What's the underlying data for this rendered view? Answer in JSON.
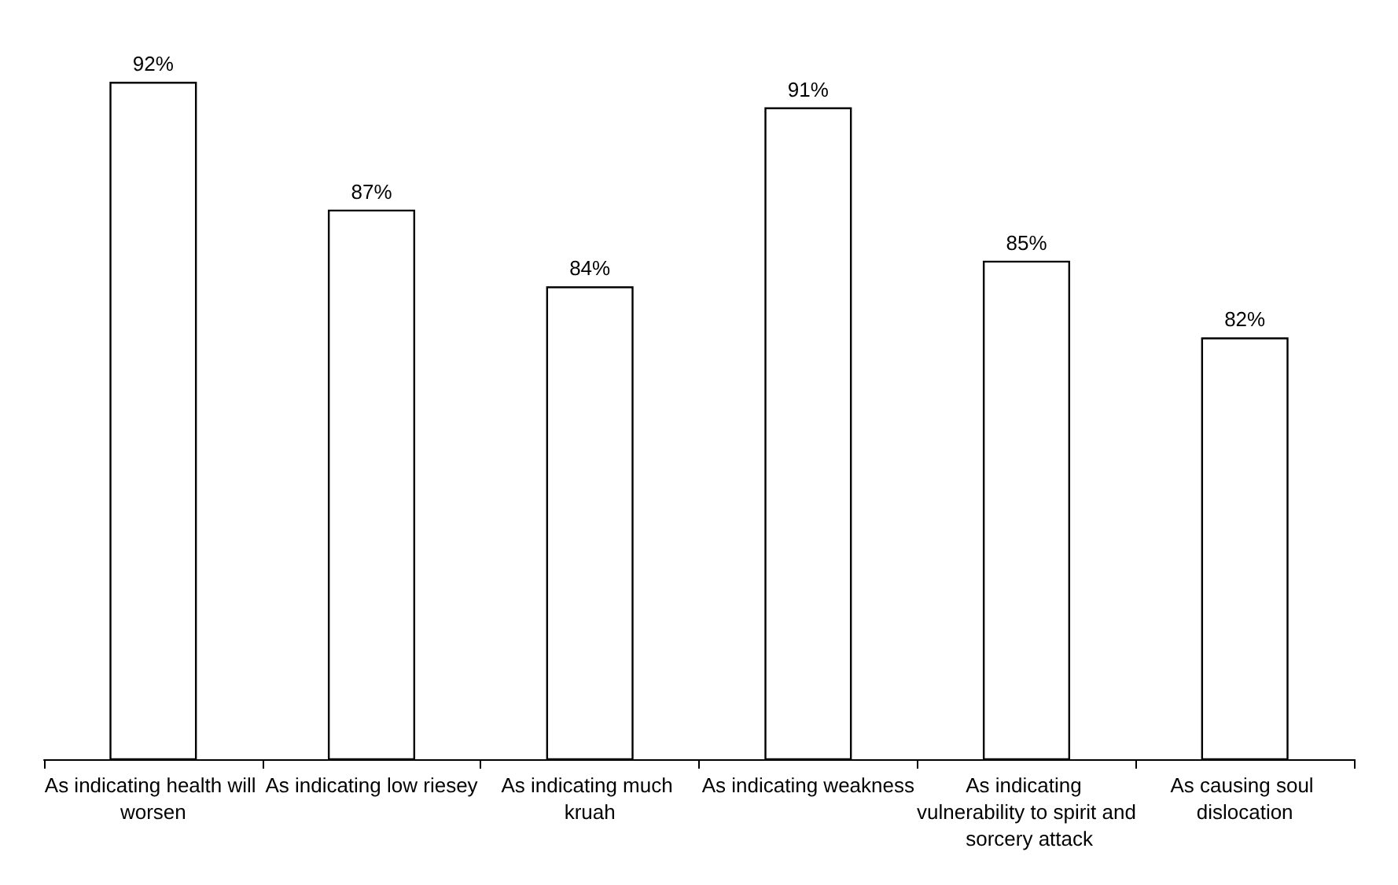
{
  "chart_data": {
    "type": "bar",
    "categories": [
      "As indicating health will worsen",
      "As indicating low riesey",
      "As indicating much kruah",
      "As indicating weakness",
      "As indicating vulnerability to spirit and sorcery attack",
      "As causing soul dislocation"
    ],
    "values": [
      92,
      87,
      84,
      91,
      85,
      82
    ],
    "value_labels": [
      "92%",
      "87%",
      "84%",
      "91%",
      "85%",
      "82%"
    ],
    "color": "#ffffff",
    "ylim": [
      65.5,
      92
    ],
    "tick_labels": "x",
    "grid": false
  }
}
